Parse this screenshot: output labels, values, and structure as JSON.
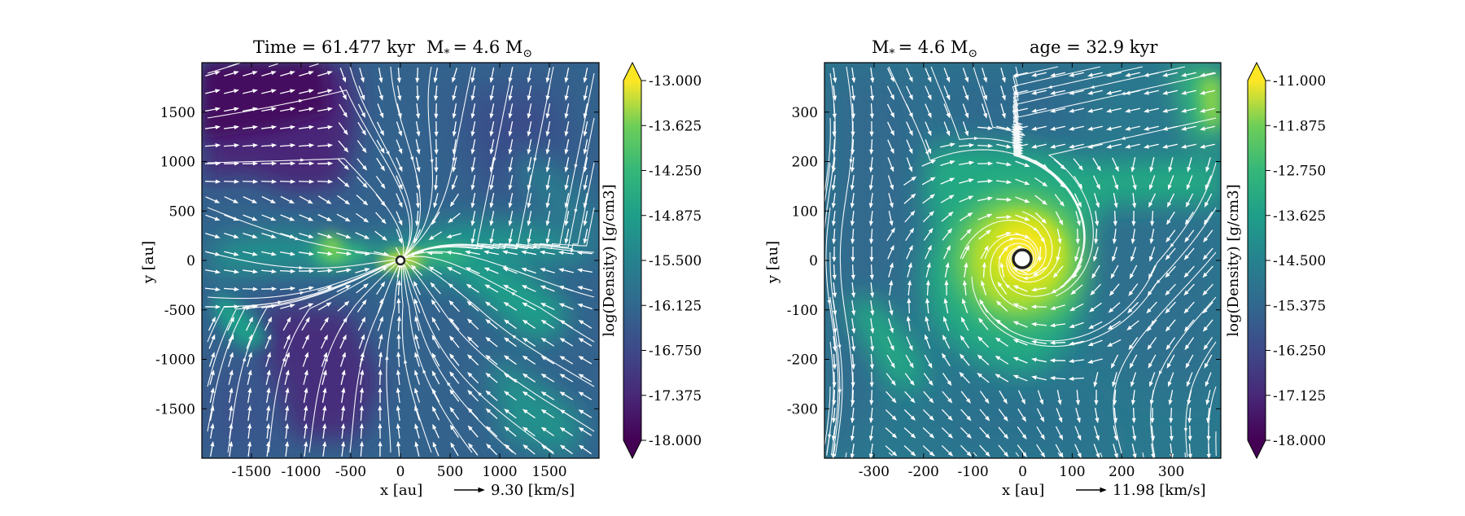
{
  "panels": [
    {
      "title_time": "Time = 61.477 kyr",
      "title_mass_prefix": "M",
      "title_mass_sub": "*",
      "title_mass_value": "= 4.6 M",
      "title_mass_unit_sub": "⊙",
      "xlabel": "x [au]",
      "ylabel": "y [au]",
      "velocity_key": "9.30 [km/s]",
      "colorbar_label": "log(Density) [g/cm3]",
      "xticks": [
        "-1500",
        "-1000",
        "-500",
        "0",
        "500",
        "1000",
        "1500"
      ],
      "yticks": [
        "1500",
        "1000",
        "500",
        "0",
        "-500",
        "-1000",
        "-1500"
      ],
      "cbticks": [
        "-13.000",
        "-13.625",
        "-14.250",
        "-14.875",
        "-15.500",
        "-16.125",
        "-16.750",
        "-17.375",
        "-18.000"
      ]
    },
    {
      "title_mass_prefix": "M",
      "title_mass_sub": "*",
      "title_mass_value": "= 4.6 M",
      "title_mass_unit_sub": "⊙",
      "title_age": "age = 32.9 kyr",
      "xlabel": "x [au]",
      "ylabel": "y [au]",
      "velocity_key": "11.98 [km/s]",
      "colorbar_label": "log(Density) [g/cm3]",
      "xticks": [
        "-300",
        "-200",
        "-100",
        "0",
        "100",
        "200",
        "300"
      ],
      "yticks": [
        "300",
        "200",
        "100",
        "0",
        "-100",
        "-200",
        "-300"
      ],
      "cbticks": [
        "-11.000",
        "-11.875",
        "-12.750",
        "-13.625",
        "-14.500",
        "-15.375",
        "-16.250",
        "-17.125",
        "-18.000"
      ]
    }
  ],
  "chart_data": [
    {
      "type": "heatmap",
      "title": "Time = 61.477 kyr    M* = 4.6 M⊙",
      "xlabel": "x [au]",
      "ylabel": "y [au]",
      "xlim": [
        -2000,
        2000
      ],
      "ylim": [
        -2000,
        2000
      ],
      "xticks": [
        -1500,
        -1000,
        -500,
        0,
        500,
        1000,
        1500
      ],
      "yticks": [
        -1500,
        -1000,
        -500,
        0,
        500,
        1000,
        1500
      ],
      "colorbar": {
        "label": "log(Density) [g/cm3]",
        "min": -18.0,
        "max": -13.0,
        "colormap": "viridis",
        "ticks": [
          -13.0,
          -13.625,
          -14.25,
          -14.875,
          -15.5,
          -16.125,
          -16.75,
          -17.375,
          -18.0
        ]
      },
      "overlay": "velocity streamlines with arrows",
      "velocity_reference": "9.30 [km/s]",
      "sink_particle": {
        "x": 0,
        "y": 0
      }
    },
    {
      "type": "heatmap",
      "title": "M* = 4.6 M⊙    age = 32.9 kyr",
      "xlabel": "x [au]",
      "ylabel": "y [au]",
      "xlim": [
        -400,
        400
      ],
      "ylim": [
        -400,
        400
      ],
      "xticks": [
        -300,
        -200,
        -100,
        0,
        100,
        200,
        300
      ],
      "yticks": [
        -300,
        -200,
        -100,
        0,
        100,
        200,
        300
      ],
      "colorbar": {
        "label": "log(Density) [g/cm3]",
        "min": -18.0,
        "max": -11.0,
        "colormap": "viridis",
        "ticks": [
          -11.0,
          -11.875,
          -12.75,
          -13.625,
          -14.5,
          -15.375,
          -16.25,
          -17.125,
          -18.0
        ]
      },
      "overlay": "velocity streamlines with arrows",
      "velocity_reference": "11.98 [km/s]",
      "sink_particle": {
        "x": 0,
        "y": 0
      }
    }
  ]
}
